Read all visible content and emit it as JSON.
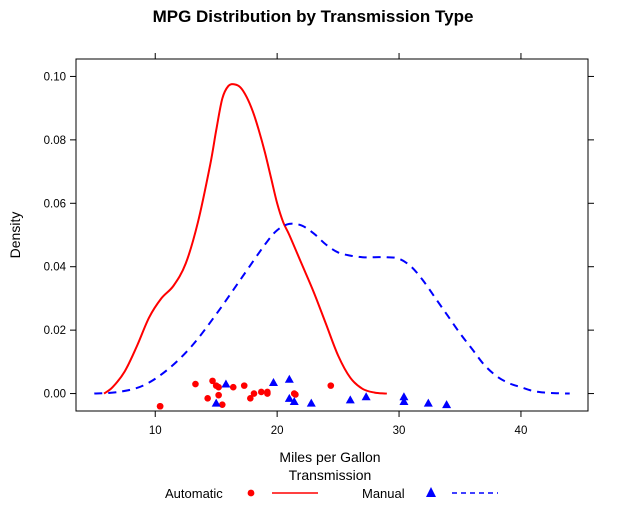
{
  "chart_data": {
    "type": "line",
    "title": "MPG Distribution by Transmission Type",
    "xlabel": "Miles per Gallon",
    "ylabel": "Density",
    "xlim": [
      3.5,
      45.5
    ],
    "ylim": [
      -0.0055,
      0.1055
    ],
    "x_ticks": [
      10,
      20,
      30,
      40
    ],
    "x_tick_labels": [
      "10",
      "20",
      "30",
      "40"
    ],
    "y_ticks": [
      0.0,
      0.02,
      0.04,
      0.06,
      0.08,
      0.1
    ],
    "y_tick_labels": [
      "0.00",
      "0.02",
      "0.04",
      "0.06",
      "0.08",
      "0.10"
    ],
    "grid": false,
    "legend": {
      "title": "Transmission",
      "placement": "bottom",
      "entries": [
        {
          "label": "Automatic",
          "color": "#ff0000",
          "marker": "circle",
          "linestyle": "solid"
        },
        {
          "label": "Manual",
          "color": "#0000ff",
          "marker": "triangle",
          "linestyle": "dashed"
        }
      ]
    },
    "series": [
      {
        "name": "Automatic",
        "color": "#ff0000",
        "linestyle": "solid",
        "density_x": [
          5.8,
          6.5,
          7.5,
          8.5,
          9.5,
          10.5,
          11.5,
          12.5,
          13.5,
          14.5,
          15.0,
          15.5,
          16.0,
          16.5,
          17.0,
          17.5,
          18.0,
          18.5,
          19.0,
          19.5,
          20.0,
          20.5,
          21.0,
          22.0,
          23.0,
          24.0,
          25.0,
          26.0,
          27.0,
          28.0,
          29.0
        ],
        "density_y": [
          0.0,
          0.002,
          0.007,
          0.015,
          0.024,
          0.03,
          0.034,
          0.041,
          0.054,
          0.072,
          0.083,
          0.093,
          0.097,
          0.0975,
          0.0965,
          0.0935,
          0.089,
          0.083,
          0.076,
          0.068,
          0.06,
          0.054,
          0.05,
          0.041,
          0.032,
          0.022,
          0.012,
          0.005,
          0.0015,
          0.0003,
          0.0
        ],
        "points_x": [
          10.4,
          10.4,
          13.3,
          14.3,
          14.7,
          15.0,
          15.2,
          15.2,
          15.5,
          16.4,
          17.3,
          17.8,
          18.1,
          18.7,
          19.2,
          19.2,
          21.4,
          21.5,
          24.4
        ],
        "points_y": [
          -0.004,
          -0.004,
          0.003,
          -0.0015,
          0.004,
          0.0025,
          -0.0005,
          0.002,
          -0.0035,
          0.002,
          0.0025,
          -0.0015,
          0.0,
          0.0005,
          0.0,
          0.0005,
          0.0,
          -0.0003,
          0.0025
        ]
      },
      {
        "name": "Manual",
        "color": "#0000ff",
        "linestyle": "dashed",
        "density_x": [
          5.0,
          7.0,
          9.0,
          11.0,
          13.0,
          15.0,
          17.0,
          19.0,
          20.0,
          21.0,
          22.0,
          23.0,
          24.0,
          25.0,
          26.0,
          27.0,
          28.0,
          29.0,
          30.0,
          31.0,
          32.0,
          33.0,
          34.0,
          35.0,
          36.0,
          37.0,
          38.0,
          39.0,
          40.0,
          41.0,
          42.0,
          43.0,
          44.0
        ],
        "density_y": [
          0.0,
          0.0005,
          0.0025,
          0.0075,
          0.015,
          0.025,
          0.036,
          0.047,
          0.0515,
          0.0535,
          0.053,
          0.0505,
          0.047,
          0.0445,
          0.0435,
          0.043,
          0.043,
          0.043,
          0.0425,
          0.04,
          0.0355,
          0.03,
          0.0245,
          0.019,
          0.014,
          0.009,
          0.0055,
          0.0033,
          0.002,
          0.0008,
          0.0003,
          0.0001,
          0.0
        ],
        "points_x": [
          15.0,
          15.8,
          19.7,
          21.0,
          21.0,
          21.4,
          22.8,
          26.0,
          27.3,
          30.4,
          30.4,
          32.4,
          33.9
        ],
        "points_y": [
          -0.003,
          0.003,
          0.0035,
          -0.0015,
          0.0045,
          -0.0025,
          -0.003,
          -0.002,
          -0.001,
          -0.001,
          -0.0025,
          -0.003,
          -0.0035
        ]
      }
    ]
  }
}
